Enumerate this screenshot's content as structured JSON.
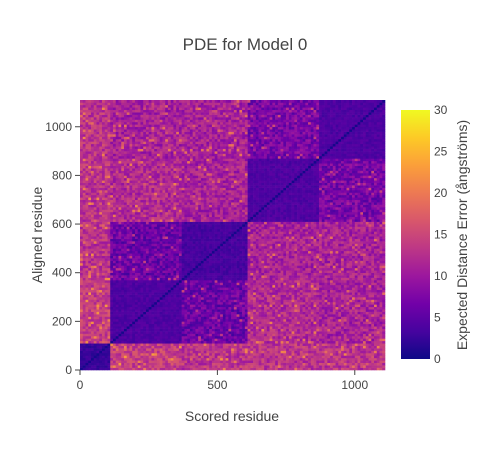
{
  "chart_data": {
    "type": "heatmap",
    "title": "PDE for Model 0",
    "xlabel": "Scored residue",
    "ylabel": "Aligned residue",
    "xlim": [
      0,
      1110
    ],
    "ylim": [
      0,
      1110
    ],
    "x_ticks": [
      0,
      500,
      1000
    ],
    "x_tick_labels": [
      "0",
      "500",
      "1000"
    ],
    "y_ticks": [
      0,
      200,
      400,
      600,
      800,
      1000
    ],
    "y_tick_labels": [
      "0",
      "200",
      "400",
      "600",
      "800",
      "1000"
    ],
    "colorbar": {
      "title": "Expected Distance Error (ångströms)",
      "range": [
        0,
        30
      ],
      "ticks": [
        0,
        5,
        10,
        15,
        20,
        25,
        30
      ],
      "tick_labels": [
        "0",
        "5",
        "10",
        "15",
        "20",
        "25",
        "30"
      ],
      "colorscale": [
        "#0d0887",
        "#46039f",
        "#7201a8",
        "#9c179e",
        "#bd3786",
        "#d8576b",
        "#ed7953",
        "#fb9f3a",
        "#fdca26",
        "#f0f921"
      ]
    },
    "domains": [
      {
        "start": 0,
        "end": 110
      },
      {
        "start": 110,
        "end": 370
      },
      {
        "start": 370,
        "end": 610
      },
      {
        "start": 610,
        "end": 870
      },
      {
        "start": 870,
        "end": 1110
      }
    ],
    "domain_pair_pde": [
      [
        1.5,
        14,
        13,
        13,
        13
      ],
      [
        14,
        3,
        6,
        12,
        11
      ],
      [
        13,
        6,
        2.5,
        11,
        11
      ],
      [
        13,
        12,
        11,
        3,
        7
      ],
      [
        13,
        11,
        11,
        7,
        3
      ]
    ],
    "grid": false,
    "legend": "colorbar-right"
  }
}
